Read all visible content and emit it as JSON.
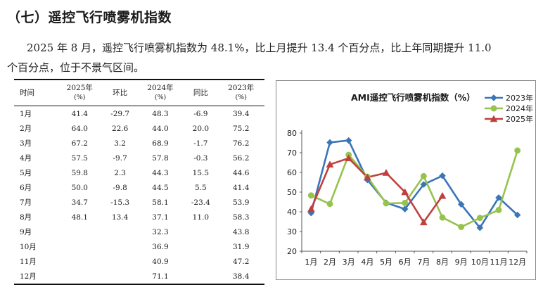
{
  "heading": "（七）遥控飞行喷雾机指数",
  "paragraph": {
    "line1": "2025 年 8 月，遥控飞行喷雾机指数为 48.1%，比上月提升 13.4 个百分点，比上年同期提升 11.0",
    "line2": "个百分点，位于不景气区间。"
  },
  "table": {
    "headers": {
      "month": "时间",
      "y2025": "2025年",
      "y2025_unit": "(%)",
      "mom": "环比",
      "y2024": "2024年",
      "y2024_unit": "(%)",
      "yoy": "同比",
      "y2023": "2023年",
      "y2023_unit": "(%)"
    },
    "rows": [
      {
        "month": "1月",
        "y2025": "41.4",
        "mom": "-29.7",
        "y2024": "48.3",
        "yoy": "-6.9",
        "y2023": "39.4"
      },
      {
        "month": "2月",
        "y2025": "64.0",
        "mom": "22.6",
        "y2024": "44.0",
        "yoy": "20.0",
        "y2023": "75.2"
      },
      {
        "month": "3月",
        "y2025": "67.2",
        "mom": "3.2",
        "y2024": "68.9",
        "yoy": "-1.7",
        "y2023": "76.2"
      },
      {
        "month": "4月",
        "y2025": "57.5",
        "mom": "-9.7",
        "y2024": "57.8",
        "yoy": "-0.3",
        "y2023": "56.2"
      },
      {
        "month": "5月",
        "y2025": "59.8",
        "mom": "2.3",
        "y2024": "44.3",
        "yoy": "15.5",
        "y2023": "44.6"
      },
      {
        "month": "6月",
        "y2025": "50.0",
        "mom": "-9.8",
        "y2024": "44.5",
        "yoy": "5.5",
        "y2023": "41.4"
      },
      {
        "month": "7月",
        "y2025": "34.7",
        "mom": "-15.3",
        "y2024": "58.1",
        "yoy": "-23.4",
        "y2023": "53.9"
      },
      {
        "month": "8月",
        "y2025": "48.1",
        "mom": "13.4",
        "y2024": "37.1",
        "yoy": "11.0",
        "y2023": "58.3"
      },
      {
        "month": "9月",
        "y2025": "",
        "mom": "",
        "y2024": "32.3",
        "yoy": "",
        "y2023": "43.8"
      },
      {
        "month": "10月",
        "y2025": "",
        "mom": "",
        "y2024": "36.9",
        "yoy": "",
        "y2023": "31.9"
      },
      {
        "month": "11月",
        "y2025": "",
        "mom": "",
        "y2024": "40.9",
        "yoy": "",
        "y2023": "47.2"
      },
      {
        "month": "12月",
        "y2025": "",
        "mom": "",
        "y2024": "71.1",
        "yoy": "",
        "y2023": "38.4"
      }
    ]
  },
  "chart_data": {
    "type": "line",
    "title": "AMI遥控飞行喷雾机指数（%）",
    "categories": [
      "1月",
      "2月",
      "3月",
      "4月",
      "5月",
      "6月",
      "7月",
      "8月",
      "9月",
      "10月",
      "11月",
      "12月"
    ],
    "yticks": [
      "20",
      "30",
      "40",
      "50",
      "60",
      "70",
      "80"
    ],
    "ylim": [
      20,
      80
    ],
    "grid": false,
    "legend_position": "top-right",
    "series": [
      {
        "name": "2023年",
        "color": "#3a75b8",
        "marker": "diamond",
        "values": [
          39.4,
          75.2,
          76.2,
          56.2,
          44.6,
          41.4,
          53.9,
          58.3,
          43.8,
          31.9,
          47.2,
          38.4
        ]
      },
      {
        "name": "2024年",
        "color": "#97c24d",
        "marker": "circle",
        "values": [
          48.3,
          44.0,
          68.9,
          57.8,
          44.3,
          44.5,
          58.1,
          37.1,
          32.3,
          36.9,
          40.9,
          71.1
        ]
      },
      {
        "name": "2025年",
        "color": "#c0403f",
        "marker": "triangle",
        "values": [
          41.4,
          64.0,
          67.2,
          57.5,
          59.8,
          50.0,
          34.7,
          48.1,
          null,
          null,
          null,
          null
        ]
      }
    ]
  }
}
